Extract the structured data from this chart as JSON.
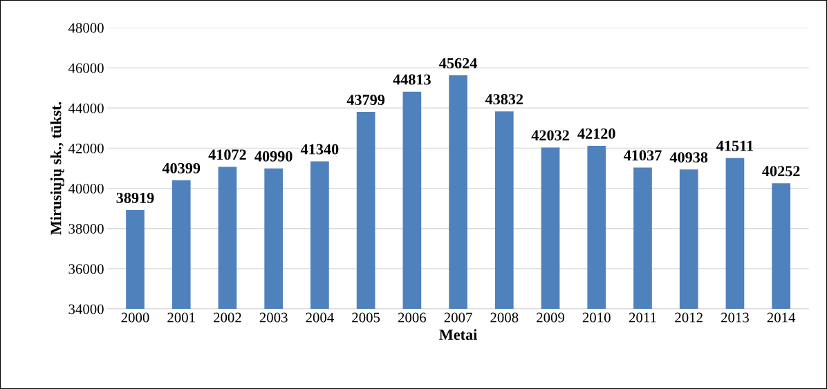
{
  "chart_data": {
    "type": "bar",
    "xlabel": "Metai",
    "ylabel": "Mirusiųjų sk., tūkst.",
    "categories": [
      "2000",
      "2001",
      "2002",
      "2003",
      "2004",
      "2005",
      "2006",
      "2007",
      "2008",
      "2009",
      "2010",
      "2011",
      "2012",
      "2013",
      "2014"
    ],
    "values": [
      38919,
      40399,
      41072,
      40990,
      41340,
      43799,
      44813,
      45624,
      43832,
      42032,
      42120,
      41037,
      40938,
      41511,
      40252
    ],
    "color": "#4f81bd",
    "ylim": [
      34000,
      48000
    ],
    "yticks": [
      34000,
      36000,
      38000,
      40000,
      42000,
      44000,
      46000,
      48000
    ],
    "grid": "y",
    "data_labels": true
  }
}
